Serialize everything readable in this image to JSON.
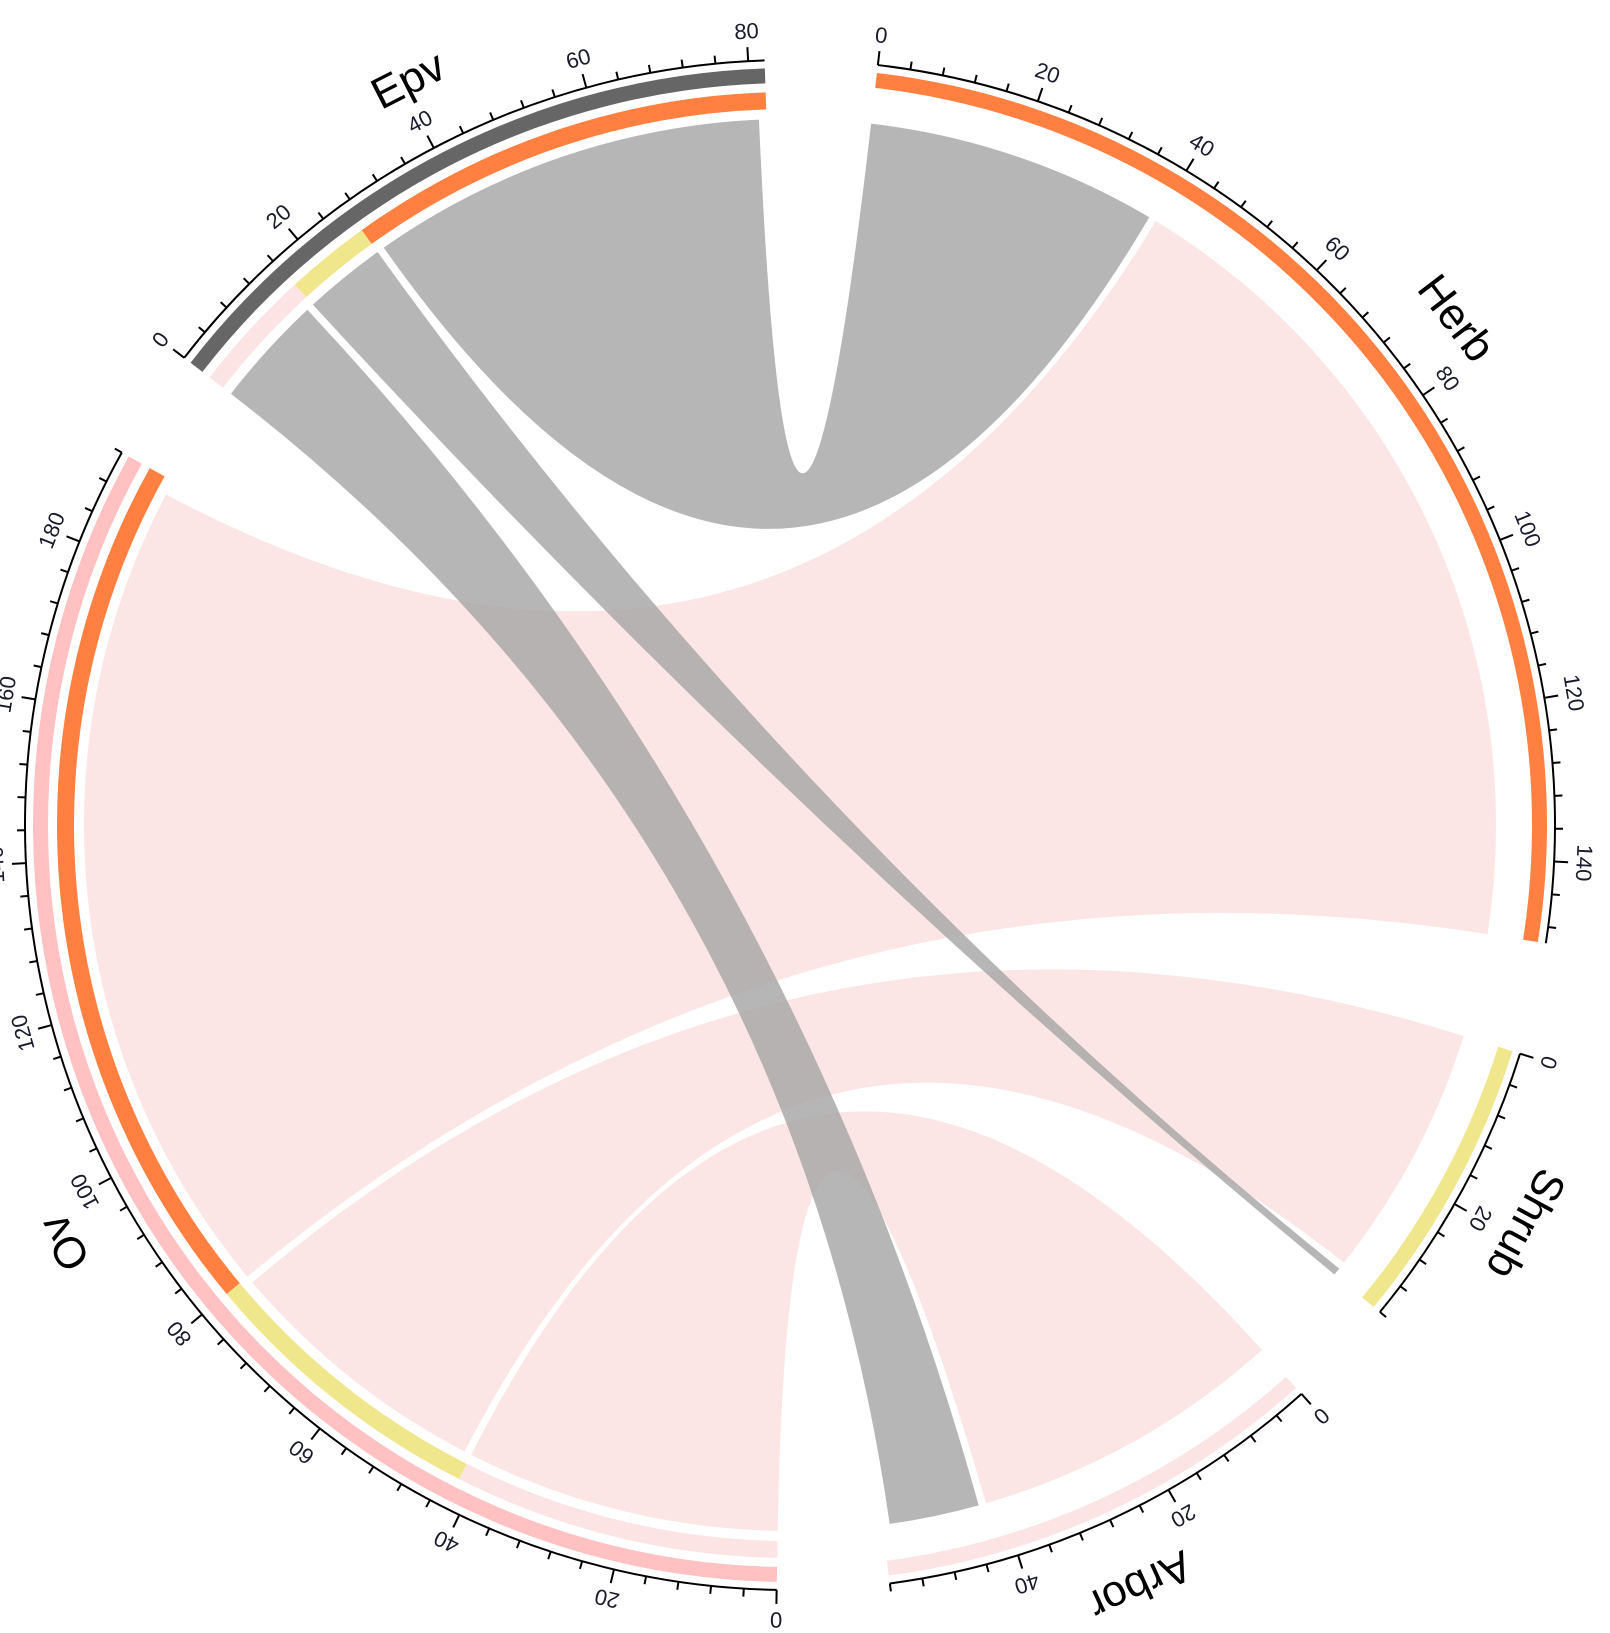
{
  "chart_data": {
    "type": "chord",
    "title": "",
    "sectors": [
      {
        "name": "Ov",
        "total": 192,
        "major_tick_step": 20,
        "track_color": "#ffc1c1",
        "inner_segments": [
          [
            0,
            42,
            "#fce4e4"
          ],
          [
            42,
            80,
            "#f0e68c"
          ],
          [
            80,
            192,
            "#ff8040"
          ]
        ]
      },
      {
        "name": "Epv",
        "total": 82,
        "major_tick_step": 20,
        "track_color": "#666666",
        "inner_segments": [
          [
            0,
            16,
            "#fce4e4"
          ],
          [
            16,
            27,
            "#f0e68c"
          ],
          [
            27,
            82,
            "#ff8040"
          ]
        ]
      },
      {
        "name": "Herb",
        "total": 150,
        "major_tick_step": 20,
        "track_color": "#ff8040",
        "inner_segments": []
      },
      {
        "name": "Shrub",
        "total": 36,
        "major_tick_step": 20,
        "track_color": "#f0e68c",
        "inner_segments": []
      },
      {
        "name": "Arbor",
        "total": 56,
        "major_tick_step": 20,
        "track_color": "#fce4e4",
        "inner_segments": []
      }
    ],
    "links": [
      {
        "from": "Ov",
        "from_range": [
          0,
          42
        ],
        "to": "Arbor",
        "to_range": [
          0,
          42
        ],
        "color": "#fce0e0"
      },
      {
        "from": "Ov",
        "from_range": [
          43,
          79
        ],
        "to": "Shrub",
        "to_range": [
          0,
          34
        ],
        "color": "#fce0e0"
      },
      {
        "from": "Ov",
        "from_range": [
          80,
          190
        ],
        "to": "Herb",
        "to_range": [
          40,
          150
        ],
        "color": "#fce0e0"
      },
      {
        "from": "Epv",
        "from_range": [
          0,
          15
        ],
        "to": "Arbor",
        "to_range": [
          43,
          55
        ],
        "color": "#a9a9a9"
      },
      {
        "from": "Epv",
        "from_range": [
          16,
          27
        ],
        "to": "Shrub",
        "to_range": [
          35,
          36
        ],
        "color": "#a9a9a9"
      },
      {
        "from": "Epv",
        "from_range": [
          28,
          81
        ],
        "to": "Herb",
        "to_range": [
          0,
          39
        ],
        "color": "#a9a9a9"
      }
    ]
  }
}
